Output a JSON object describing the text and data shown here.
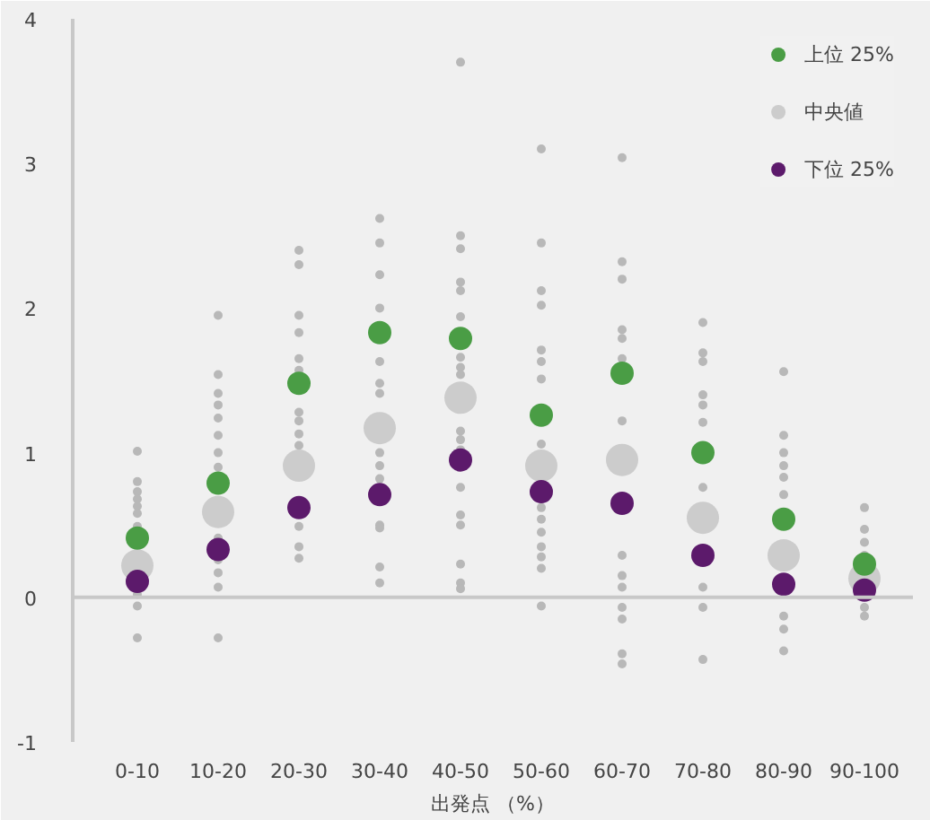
{
  "chart_data": {
    "type": "scatter",
    "xlabel": "出発点 （%）",
    "categories": [
      "0-10",
      "10-20",
      "20-30",
      "30-40",
      "40-50",
      "50-60",
      "60-70",
      "70-80",
      "80-90",
      "90-100"
    ],
    "ylim": [
      -1,
      4
    ],
    "yticks": [
      -1,
      0,
      1,
      2,
      3,
      4
    ],
    "grid": false,
    "legend": "top right",
    "marker": "circle",
    "ref_lines": [
      {
        "axis": "y",
        "value": 0,
        "color": "#c8c8c8"
      }
    ],
    "series": [
      {
        "color": "#b8b8b8",
        "x": [
          "0-10",
          "0-10",
          "0-10",
          "0-10",
          "0-10",
          "0-10",
          "0-10",
          "0-10",
          "0-10",
          "0-10",
          "10-20",
          "10-20",
          "10-20",
          "10-20",
          "10-20",
          "10-20",
          "10-20",
          "10-20",
          "10-20",
          "10-20",
          "10-20",
          "10-20",
          "10-20",
          "10-20",
          "20-30",
          "20-30",
          "20-30",
          "20-30",
          "20-30",
          "20-30",
          "20-30",
          "20-30",
          "20-30",
          "20-30",
          "20-30",
          "20-30",
          "20-30",
          "20-30",
          "30-40",
          "30-40",
          "30-40",
          "30-40",
          "30-40",
          "30-40",
          "30-40",
          "30-40",
          "30-40",
          "30-40",
          "30-40",
          "30-40",
          "30-40",
          "30-40",
          "40-50",
          "40-50",
          "40-50",
          "40-50",
          "40-50",
          "40-50",
          "40-50",
          "40-50",
          "40-50",
          "40-50",
          "40-50",
          "40-50",
          "40-50",
          "40-50",
          "40-50",
          "40-50",
          "40-50",
          "40-50",
          "40-50",
          "50-60",
          "50-60",
          "50-60",
          "50-60",
          "50-60",
          "50-60",
          "50-60",
          "50-60",
          "50-60",
          "50-60",
          "50-60",
          "50-60",
          "50-60",
          "50-60",
          "50-60",
          "60-70",
          "60-70",
          "60-70",
          "60-70",
          "60-70",
          "60-70",
          "60-70",
          "60-70",
          "60-70",
          "60-70",
          "60-70",
          "60-70",
          "60-70",
          "60-70",
          "60-70",
          "70-80",
          "70-80",
          "70-80",
          "70-80",
          "70-80",
          "70-80",
          "70-80",
          "70-80",
          "70-80",
          "70-80",
          "70-80",
          "80-90",
          "80-90",
          "80-90",
          "80-90",
          "80-90",
          "80-90",
          "80-90",
          "80-90",
          "80-90",
          "80-90",
          "90-100",
          "90-100",
          "90-100",
          "90-100",
          "90-100",
          "90-100"
        ],
        "values": [
          1.01,
          0.8,
          0.73,
          0.68,
          0.63,
          0.58,
          0.49,
          0.02,
          -0.06,
          -0.28,
          1.95,
          1.54,
          1.41,
          1.33,
          1.24,
          1.12,
          1.0,
          0.9,
          null,
          0.41,
          0.26,
          0.17,
          0.07,
          -0.28,
          2.4,
          2.3,
          1.95,
          1.83,
          1.65,
          1.57,
          1.28,
          1.22,
          1.13,
          1.05,
          null,
          0.49,
          0.35,
          0.27,
          2.62,
          2.45,
          2.23,
          2.0,
          1.63,
          1.48,
          1.41,
          1.0,
          0.91,
          0.82,
          0.5,
          0.48,
          0.21,
          0.1,
          3.7,
          2.5,
          2.41,
          2.18,
          2.12,
          1.94,
          1.66,
          1.59,
          1.54,
          1.15,
          1.09,
          1.02,
          null,
          0.76,
          0.57,
          0.5,
          0.23,
          0.1,
          0.06,
          3.1,
          2.45,
          2.12,
          2.02,
          1.71,
          1.63,
          1.51,
          1.06,
          0.62,
          0.54,
          0.45,
          0.35,
          0.28,
          0.2,
          -0.06,
          3.04,
          2.32,
          2.2,
          1.85,
          1.79,
          1.65,
          null,
          1.22,
          0.29,
          0.15,
          0.07,
          -0.07,
          -0.15,
          -0.39,
          -0.46,
          1.9,
          1.69,
          1.63,
          1.4,
          1.33,
          1.21,
          0.76,
          null,
          0.07,
          -0.07,
          -0.43,
          1.56,
          1.12,
          1.0,
          0.91,
          0.83,
          0.71,
          null,
          -0.13,
          -0.22,
          -0.37,
          0.62,
          0.47,
          0.38,
          0.29,
          -0.07,
          -0.13
        ]
      },
      {
        "name": "上位 25%",
        "color": "#4a9d45",
        "values": [
          0.41,
          0.79,
          1.48,
          1.83,
          1.79,
          1.26,
          1.55,
          1.0,
          0.54,
          0.23
        ]
      },
      {
        "name": "中央値",
        "color": "#cccccc",
        "values": [
          0.22,
          0.59,
          0.91,
          1.17,
          1.38,
          0.91,
          0.95,
          0.55,
          0.29,
          0.13
        ]
      },
      {
        "name": "下位 25%",
        "color": "#5c1a6b",
        "values": [
          0.11,
          0.33,
          0.62,
          0.71,
          0.95,
          0.73,
          0.65,
          0.29,
          0.09,
          0.05
        ]
      }
    ]
  }
}
